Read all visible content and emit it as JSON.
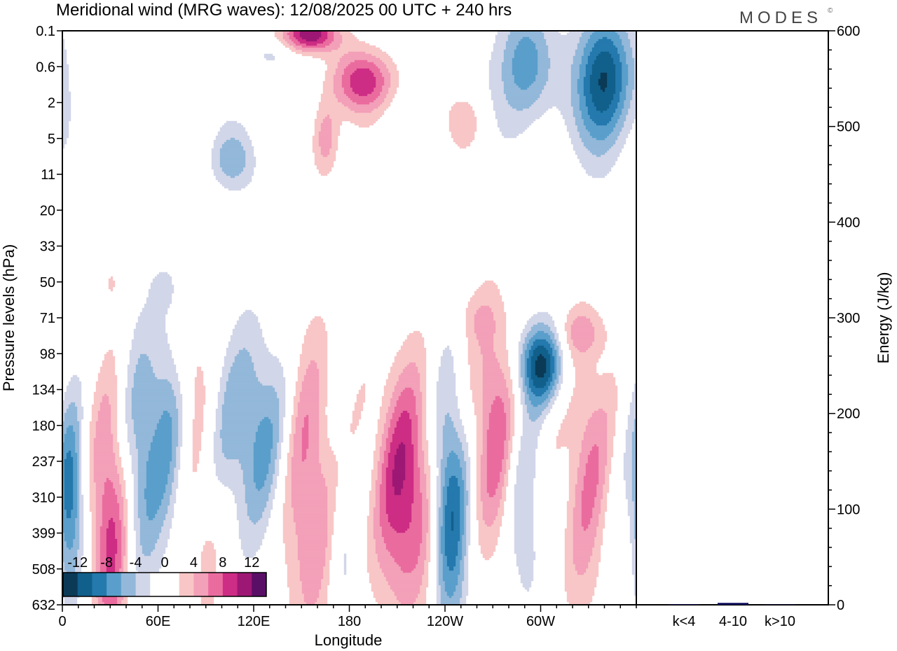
{
  "chart_data": [
    {
      "type": "heatmap",
      "title": "Meridional wind (MRG waves):  12/08/2025  00 UTC  + 240 hrs",
      "brand": "MODES",
      "brand_mark": "©",
      "xlabel": "Longitude",
      "ylabel": "Pressure levels (hPa)",
      "x_ticks": [
        "0",
        "60E",
        "120E",
        "180",
        "120W",
        "60W"
      ],
      "x_tick_degrees": [
        0,
        60,
        120,
        180,
        240,
        300
      ],
      "xlim": [
        0,
        360
      ],
      "y_levels": [
        "0.1",
        "0.6",
        "2",
        "5",
        "11",
        "20",
        "33",
        "50",
        "71",
        "98",
        "134",
        "180",
        "237",
        "310",
        "399",
        "508",
        "632"
      ],
      "colorbar": {
        "tick_labels": [
          "-12",
          "-8",
          "-4",
          "0",
          "4",
          "8",
          "12"
        ],
        "levels": [
          -14,
          -12,
          -10,
          -8,
          -6,
          -4,
          -2,
          0,
          2,
          4,
          6,
          8,
          10,
          12,
          14
        ],
        "colors": [
          "#0b3a57",
          "#11608c",
          "#2479ad",
          "#5a9fcb",
          "#93b8d9",
          "#d2d6e9",
          "#ffffff",
          "#ffffff",
          "#f8c6c6",
          "#f3a0b9",
          "#ea6c9f",
          "#cd2d84",
          "#9d1874",
          "#5a0f66"
        ]
      },
      "features": [
        {
          "lon": 30,
          "level": 7,
          "dlon": 6,
          "dlev": 0.5,
          "value": 2
        },
        {
          "lon": 65,
          "level": 7.2,
          "dlon": 6,
          "dlev": 0.4,
          "value": -2
        },
        {
          "lon": 108,
          "level": 6,
          "dlon": 6,
          "dlev": 0.4,
          "value": 2
        },
        {
          "lon": 130,
          "level": 0.7,
          "dlon": 10,
          "dlev": 0.3,
          "value": -3
        },
        {
          "lon": 155,
          "level": 0.1,
          "dlon": 12,
          "dlev": 0.35,
          "value": 12
        },
        {
          "lon": 190,
          "level": 1.4,
          "dlon": 14,
          "dlev": 0.6,
          "value": 9
        },
        {
          "lon": 165,
          "level": 3,
          "dlon": 6,
          "dlev": 0.8,
          "value": 6
        },
        {
          "lon": 255,
          "level": 2.5,
          "dlon": 8,
          "dlev": 0.6,
          "value": 3
        },
        {
          "lon": 290,
          "level": 1,
          "dlon": 12,
          "dlev": 1.2,
          "value": -8
        },
        {
          "lon": 340,
          "level": 1.4,
          "dlon": 12,
          "dlev": 1.3,
          "value": -13
        },
        {
          "lon": 240,
          "level": 5.5,
          "dlon": 14,
          "dlev": 0.4,
          "value": 2
        },
        {
          "lon": 105,
          "level": 3.6,
          "dlon": 10,
          "dlev": 0.6,
          "value": -5
        },
        {
          "lon": 260,
          "level": 8,
          "dlon": 10,
          "dlev": 0.5,
          "value": 2
        },
        {
          "lon": 300,
          "level": 9.3,
          "dlon": 10,
          "dlev": 0.8,
          "value": -12
        },
        {
          "lon": 325,
          "level": 8.4,
          "dlon": 12,
          "dlev": 0.5,
          "value": 4
        },
        {
          "lon": 30,
          "level": 14,
          "dlon": 8,
          "dlev": 2.6,
          "value": 9
        },
        {
          "lon": 50,
          "level": 12,
          "dlon": 8,
          "dlev": 2.4,
          "value": -6
        },
        {
          "lon": 65,
          "level": 11,
          "dlon": 8,
          "dlev": 2.4,
          "value": -5
        },
        {
          "lon": 120,
          "level": 11.2,
          "dlon": 16,
          "dlev": 2,
          "value": -7
        },
        {
          "lon": 155,
          "level": 12.8,
          "dlon": 12,
          "dlev": 3,
          "value": 7
        },
        {
          "lon": 215,
          "level": 12.8,
          "dlon": 14,
          "dlev": 2.4,
          "value": 10
        },
        {
          "lon": 243,
          "level": 13.3,
          "dlon": 8,
          "dlev": 2.4,
          "value": -11
        },
        {
          "lon": 270,
          "level": 11,
          "dlon": 10,
          "dlev": 2.4,
          "value": 7
        },
        {
          "lon": 330,
          "level": 11.5,
          "dlon": 10,
          "dlev": 2,
          "value": 5
        },
        {
          "lon": 365,
          "level": 13.2,
          "dlon": 6,
          "dlev": 2,
          "value": -5
        },
        {
          "lon": 5,
          "level": 13,
          "dlon": 6,
          "dlev": 1.6,
          "value": -4
        },
        {
          "lon": 90,
          "level": 14.2,
          "dlon": 8,
          "dlev": 2.2,
          "value": 3
        },
        {
          "lon": 175,
          "level": 14.5,
          "dlon": 6,
          "dlev": 2.2,
          "value": -3
        },
        {
          "lon": 325,
          "level": 14.5,
          "dlon": 10,
          "dlev": 1.8,
          "value": 3
        },
        {
          "lon": 80,
          "level": 9,
          "dlon": 8,
          "dlev": 1.4,
          "value": 3
        },
        {
          "lon": 290,
          "level": 13.6,
          "dlon": 8,
          "dlev": 2,
          "value": -4
        }
      ]
    },
    {
      "type": "bar",
      "ylabel": "Energy (J/kg)",
      "categories": [
        "k<4",
        "4-10",
        "k>10"
      ],
      "values": [
        0.5,
        2,
        0.3
      ],
      "ylim": [
        0,
        600
      ],
      "y_ticks": [
        "0",
        "100",
        "200",
        "300",
        "400",
        "500",
        "600"
      ],
      "y_tick_values": [
        0,
        100,
        200,
        300,
        400,
        500,
        600
      ],
      "y_minor_step": 20,
      "bar_color": "#0a0a5c"
    }
  ]
}
